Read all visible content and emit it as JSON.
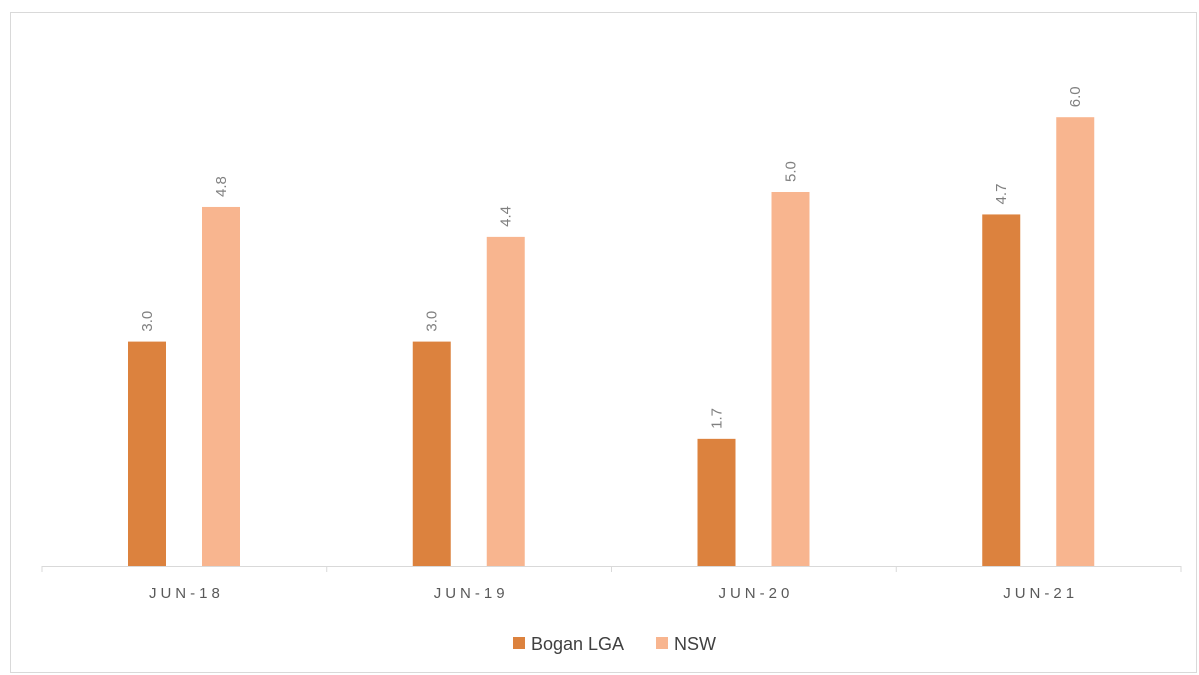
{
  "chart_data": {
    "type": "bar",
    "categories": [
      "JUN-18",
      "JUN-19",
      "JUN-20",
      "JUN-21"
    ],
    "series": [
      {
        "name": "Bogan LGA",
        "values": [
          3.0,
          3.0,
          1.7,
          4.7
        ],
        "color": "#dc823e"
      },
      {
        "name": "NSW",
        "values": [
          4.8,
          4.4,
          5.0,
          6.0
        ],
        "color": "#f8b58f"
      }
    ],
    "title": "",
    "xlabel": "",
    "ylabel": "",
    "ylim": [
      0,
      6.0
    ],
    "grid": false,
    "legend": "bottom",
    "data_labels": true
  }
}
